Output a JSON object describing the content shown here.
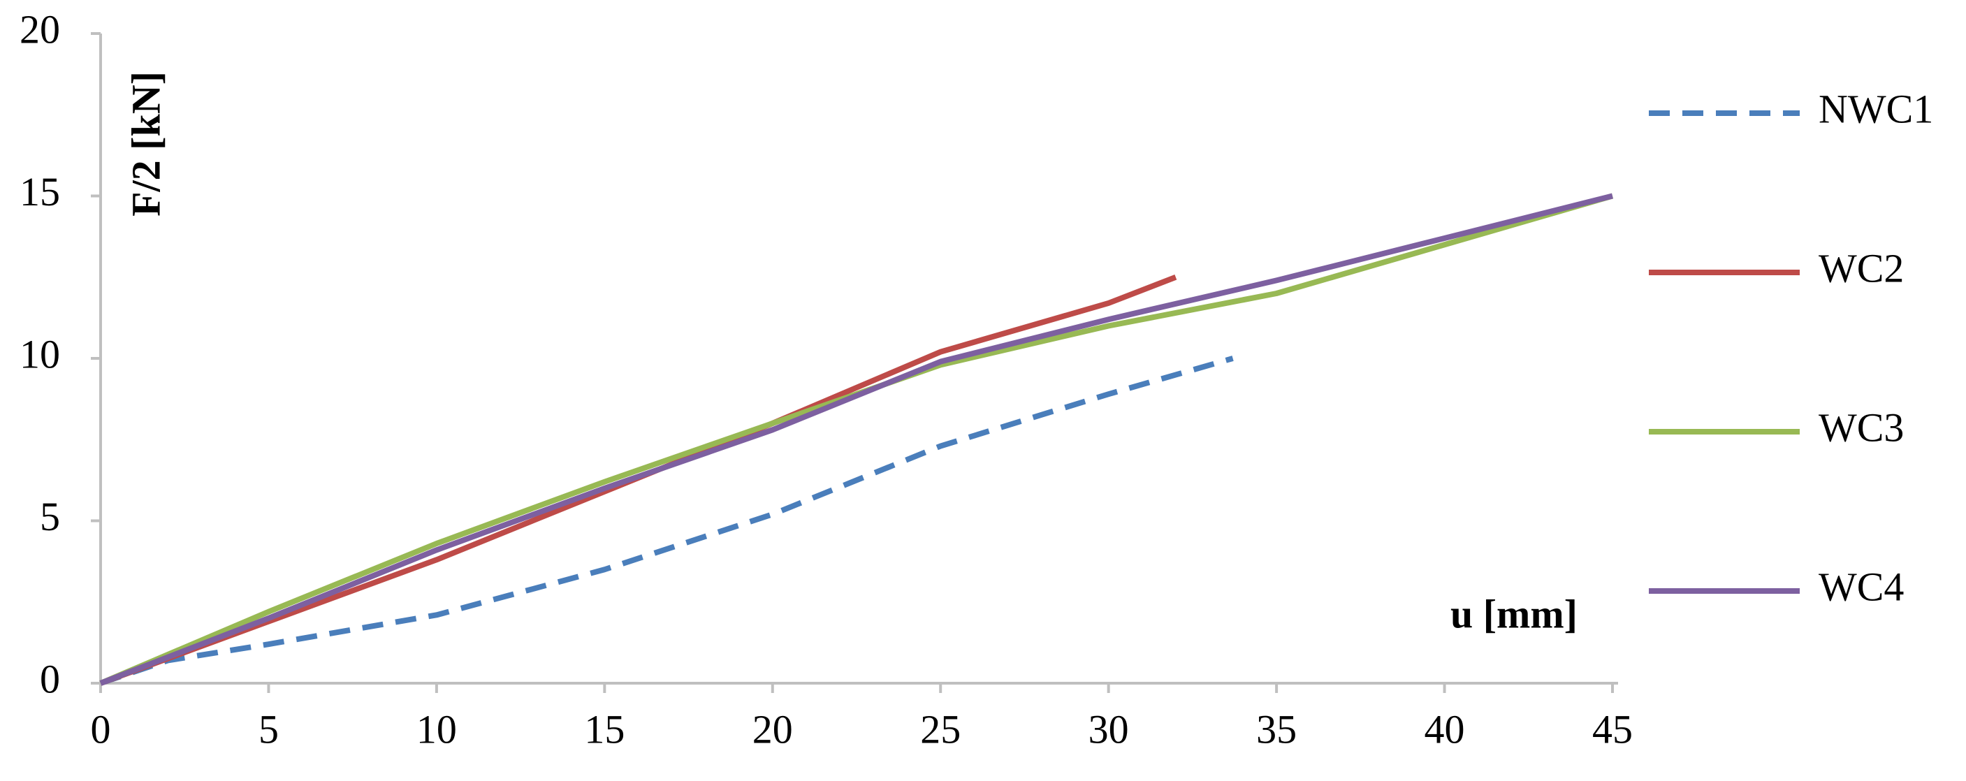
{
  "chart_data": {
    "type": "line",
    "x_label": "u [mm]",
    "y_label": "F/2 [kN]",
    "xlim": [
      0,
      45
    ],
    "xticks": [
      0,
      5,
      10,
      15,
      20,
      25,
      30,
      35,
      40,
      45
    ],
    "ylim": [
      0,
      20
    ],
    "yticks": [
      0,
      5,
      10,
      15,
      20
    ],
    "grid": false,
    "legend": "right",
    "series": [
      {
        "name": "NWC1",
        "color": "#4a7ebb",
        "dashed": true,
        "x": [
          0,
          2,
          5,
          10,
          15,
          20,
          25,
          30,
          33.7
        ],
        "values": [
          0,
          0.7,
          1.2,
          2.1,
          3.5,
          5.2,
          7.3,
          8.9,
          10
        ]
      },
      {
        "name": "WC2",
        "color": "#be4b48",
        "dashed": false,
        "x": [
          0,
          5,
          10,
          15,
          20,
          25,
          30,
          32
        ],
        "values": [
          0,
          1.9,
          3.8,
          5.9,
          8.0,
          10.2,
          11.7,
          12.5
        ]
      },
      {
        "name": "WC3",
        "color": "#98b954",
        "dashed": false,
        "x": [
          0,
          5,
          10,
          15,
          20,
          25,
          30,
          35,
          40,
          45
        ],
        "values": [
          0,
          2.2,
          4.3,
          6.2,
          8.0,
          9.8,
          11.0,
          12.0,
          13.5,
          15
        ]
      },
      {
        "name": "WC4",
        "color": "#7d60a0",
        "dashed": false,
        "x": [
          0,
          5,
          10,
          15,
          20,
          25,
          30,
          35,
          40,
          45
        ],
        "values": [
          0,
          2.0,
          4.1,
          6.0,
          7.8,
          9.9,
          11.2,
          12.4,
          13.7,
          15
        ]
      }
    ]
  }
}
